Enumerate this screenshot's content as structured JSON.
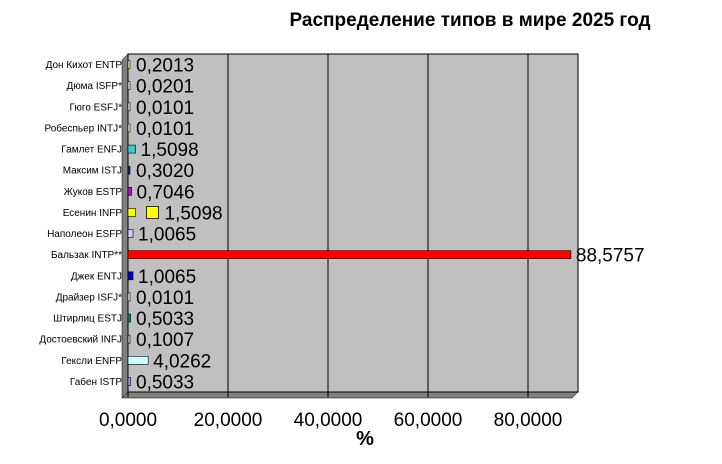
{
  "chart_data": {
    "type": "bar",
    "orientation": "horizontal",
    "title": "Распределение типов в мире 2025 год",
    "xlabel": "%",
    "ylabel": "",
    "xlim": [
      0,
      90
    ],
    "xticks": [
      0,
      20,
      40,
      60,
      80
    ],
    "xtick_labels": [
      "0,0000",
      "20,0000",
      "40,0000",
      "60,0000",
      "80,0000"
    ],
    "grid": true,
    "plot_background": "#c0c0c0",
    "categories": [
      "Дон Кихот ENTP",
      "Дюма ISFP*",
      "Гюго ESFJ*",
      "Робеспьер INTJ*",
      "Гамлет ENFJ",
      "Максим ISTJ",
      "Жуков ESTP",
      "Есенин INFP",
      "Наполеон ESFP",
      "Бальзак INTP**",
      "Джек ENTJ",
      "Драйзер ISFJ*",
      "Штирлиц ESTJ",
      "Достоевский INFJ",
      "Гексли ENFP",
      "Габен ISTP"
    ],
    "values": [
      0.2013,
      0.0201,
      0.0101,
      0.0101,
      1.5098,
      0.302,
      0.7046,
      1.5098,
      1.0065,
      88.5757,
      1.0065,
      0.0101,
      0.5033,
      0.1007,
      4.0262,
      0.5033
    ],
    "value_labels": [
      "0,2013",
      "0,0201",
      "0,0101",
      "0,0101",
      "1,5098",
      "0,3020",
      "0,7046",
      "1,5098",
      "1,0065",
      "88,5757",
      "1,0065",
      "0,0101",
      "0,5033",
      "0,1007",
      "4,0262",
      "0,5033"
    ],
    "colors": [
      "#ffff99",
      "#ffffcc",
      "#ccffff",
      "#ffffcc",
      "#33cccc",
      "#003366",
      "#cc00cc",
      "#ffff00",
      "#ccccff",
      "#ff0000",
      "#0000cc",
      "#ffffcc",
      "#008080",
      "#ccccff",
      "#ccffff",
      "#9999ff"
    ],
    "extra_marks": [
      {
        "category": "Есенин INFP",
        "color": "#ffff00",
        "value": 4.5,
        "size": "large"
      }
    ]
  }
}
